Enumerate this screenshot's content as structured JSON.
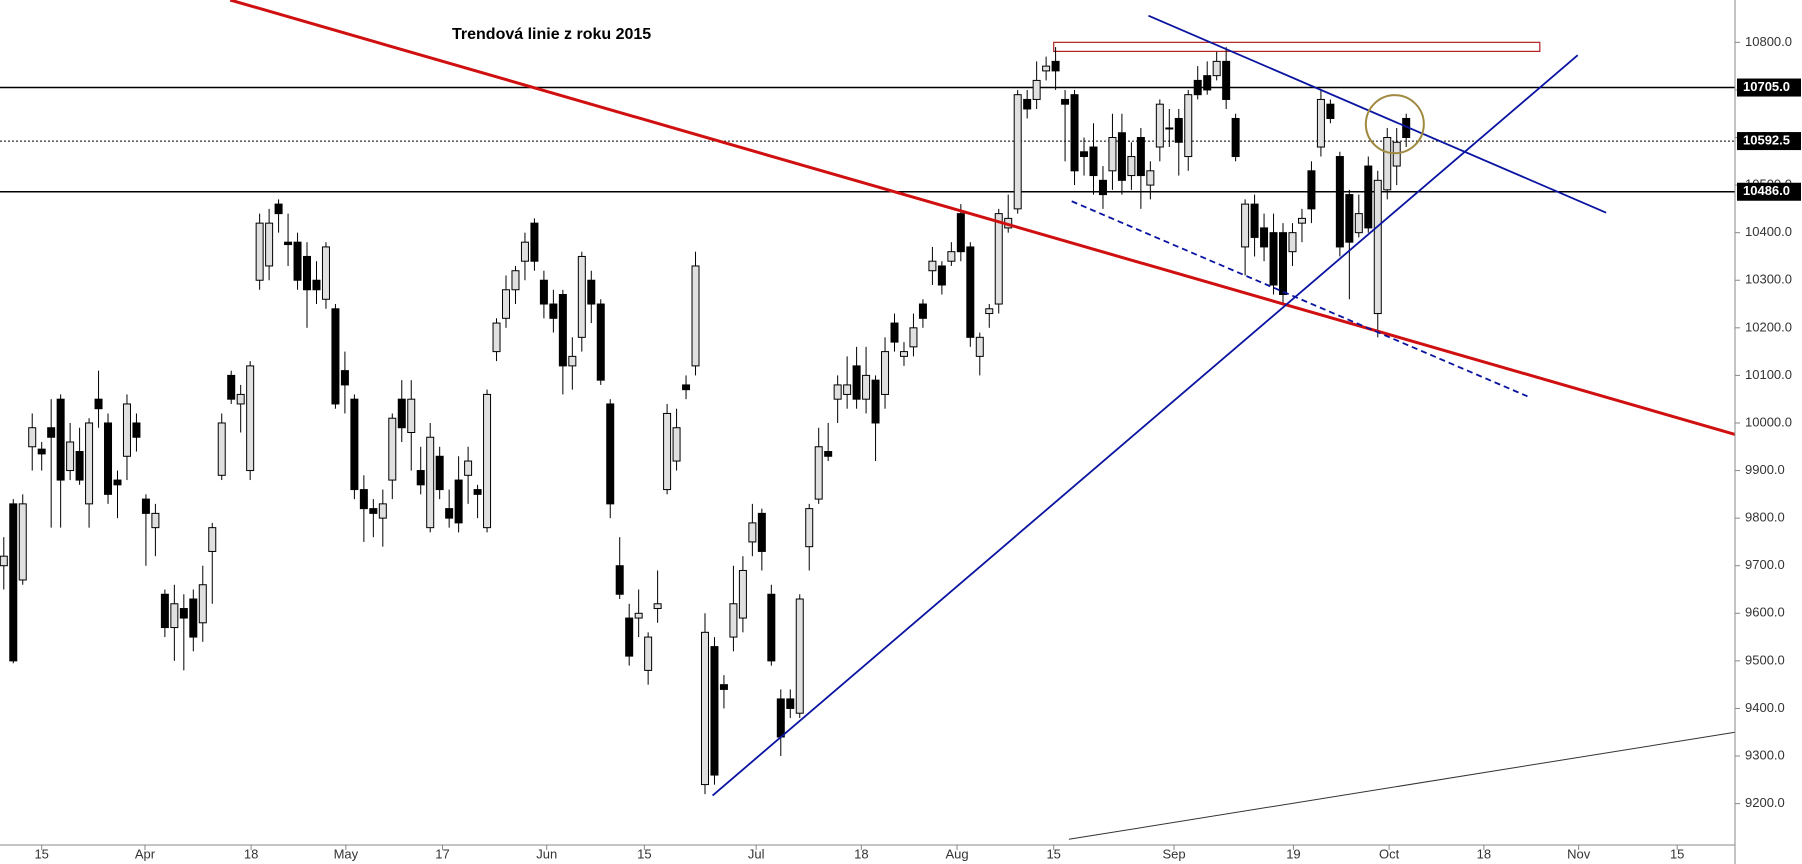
{
  "chart_data": {
    "type": "candlestick",
    "title": "Trendová linie z roku 2015",
    "xlim": [
      -0.4,
      182.7
    ],
    "ylim": [
      9113,
      10889
    ],
    "yticks": [
      {
        "value": 9200,
        "label": "9200.0"
      },
      {
        "value": 9300,
        "label": "9300.0"
      },
      {
        "value": 9400,
        "label": "9400.0"
      },
      {
        "value": 9500,
        "label": "9500.0"
      },
      {
        "value": 9600,
        "label": "9600.0"
      },
      {
        "value": 9700,
        "label": "9700.0"
      },
      {
        "value": 9800,
        "label": "9800.0"
      },
      {
        "value": 9900,
        "label": "9900.0"
      },
      {
        "value": 10000,
        "label": "10000.0"
      },
      {
        "value": 10100,
        "label": "10100.0"
      },
      {
        "value": 10200,
        "label": "10200.0"
      },
      {
        "value": 10300,
        "label": "10300.0"
      },
      {
        "value": 10400,
        "label": "10400.0"
      },
      {
        "value": 10500,
        "label": "10500.0"
      },
      {
        "value": 10600,
        "label": "10600.0"
      },
      {
        "value": 10700,
        "label": "10700.0"
      },
      {
        "value": 10800,
        "label": "10800.0"
      }
    ],
    "xticks": [
      {
        "value": 4.0,
        "label": "15"
      },
      {
        "value": 14.9,
        "label": "Apr"
      },
      {
        "value": 26.1,
        "label": "18"
      },
      {
        "value": 36.1,
        "label": "May"
      },
      {
        "value": 46.3,
        "label": "17"
      },
      {
        "value": 57.3,
        "label": "Jun"
      },
      {
        "value": 67.6,
        "label": "15"
      },
      {
        "value": 79.4,
        "label": "Jul"
      },
      {
        "value": 90.5,
        "label": "18"
      },
      {
        "value": 100.6,
        "label": "Aug"
      },
      {
        "value": 110.8,
        "label": "15"
      },
      {
        "value": 123.5,
        "label": "Sep"
      },
      {
        "value": 136.1,
        "label": "19"
      },
      {
        "value": 146.2,
        "label": "Oct"
      },
      {
        "value": 156.2,
        "label": "18"
      },
      {
        "value": 166.2,
        "label": "Nov"
      },
      {
        "value": 176.6,
        "label": "15"
      }
    ],
    "up_color": "#e0e0e0",
    "down_color": "#000000",
    "hlines": [
      {
        "value": 10705,
        "label": "10705.0",
        "style": "solid"
      },
      {
        "value": 10592.5,
        "label": "10592.5",
        "style": "dotted"
      },
      {
        "value": 10486,
        "label": "10486.0",
        "style": "solid"
      }
    ],
    "trendlines": [
      {
        "color": "#d01010",
        "width": 3,
        "dash": false,
        "x": [
          23.9,
          182.7
        ],
        "y": [
          10889,
          9976
        ]
      },
      {
        "color": "#0a14a0",
        "width": 1.8,
        "dash": false,
        "x": [
          74.8,
          166.1
        ],
        "y": [
          9217,
          10773
        ]
      },
      {
        "color": "#0a14a0",
        "width": 1.8,
        "dash": false,
        "x": [
          120.8,
          169.1
        ],
        "y": [
          10856,
          10442
        ]
      },
      {
        "color": "#0a14a0",
        "width": 1.8,
        "dash": true,
        "x": [
          112.7,
          160.8
        ],
        "y": [
          10466,
          10056
        ]
      },
      {
        "color": "#333333",
        "width": 1,
        "dash": false,
        "x": [
          112.4,
          182.7
        ],
        "y": [
          9125,
          9350
        ]
      }
    ],
    "zone": {
      "color": "#b02020",
      "x": [
        110.8,
        162.1
      ],
      "y": [
        10800,
        10781
      ]
    },
    "circle": {
      "color": "#a08a40",
      "x": 146.8,
      "y": 10628
    },
    "candles": [
      [
        9700,
        9760,
        9650,
        9720
      ],
      [
        9830,
        9840,
        9495,
        9500
      ],
      [
        9670,
        9850,
        9660,
        9830
      ],
      [
        9950,
        10020,
        9900,
        9990
      ],
      [
        9945,
        9960,
        9900,
        9935
      ],
      [
        9990,
        10050,
        9780,
        9970
      ],
      [
        10050,
        10060,
        9780,
        9880
      ],
      [
        9900,
        10000,
        9880,
        9960
      ],
      [
        9940,
        9990,
        9870,
        9880
      ],
      [
        9830,
        10010,
        9780,
        10000
      ],
      [
        10050,
        10110,
        9990,
        10030
      ],
      [
        10000,
        10020,
        9830,
        9850
      ],
      [
        9880,
        9900,
        9800,
        9870
      ],
      [
        9930,
        10060,
        9880,
        10040
      ],
      [
        10000,
        10020,
        9940,
        9970
      ],
      [
        9840,
        9850,
        9700,
        9810
      ],
      [
        9780,
        9830,
        9720,
        9810
      ],
      [
        9640,
        9650,
        9550,
        9570
      ],
      [
        9570,
        9660,
        9500,
        9620
      ],
      [
        9610,
        9640,
        9480,
        9590
      ],
      [
        9630,
        9650,
        9520,
        9550
      ],
      [
        9580,
        9700,
        9540,
        9660
      ],
      [
        9730,
        9790,
        9620,
        9780
      ],
      [
        9890,
        10020,
        9880,
        10000
      ],
      [
        10100,
        10110,
        10040,
        10050
      ],
      [
        10040,
        10080,
        9980,
        10060
      ],
      [
        9900,
        10130,
        9880,
        10120
      ],
      [
        10300,
        10440,
        10280,
        10420
      ],
      [
        10330,
        10450,
        10300,
        10420
      ],
      [
        10460,
        10470,
        10400,
        10440
      ],
      [
        10380,
        10440,
        10330,
        10375
      ],
      [
        10380,
        10400,
        10280,
        10300
      ],
      [
        10350,
        10380,
        10200,
        10280
      ],
      [
        10300,
        10340,
        10250,
        10280
      ],
      [
        10260,
        10380,
        10240,
        10370
      ],
      [
        10240,
        10250,
        10030,
        10040
      ],
      [
        10110,
        10150,
        10020,
        10080
      ],
      [
        10050,
        10060,
        9840,
        9860
      ],
      [
        9860,
        9890,
        9750,
        9820
      ],
      [
        9820,
        9840,
        9760,
        9810
      ],
      [
        9800,
        9860,
        9740,
        9830
      ],
      [
        9880,
        10020,
        9840,
        10010
      ],
      [
        10050,
        10090,
        9960,
        9990
      ],
      [
        9980,
        10090,
        9900,
        10050
      ],
      [
        9900,
        9950,
        9850,
        9870
      ],
      [
        9780,
        10000,
        9770,
        9970
      ],
      [
        9930,
        9950,
        9840,
        9860
      ],
      [
        9820,
        9860,
        9780,
        9800
      ],
      [
        9880,
        9930,
        9770,
        9790
      ],
      [
        9890,
        9950,
        9830,
        9920
      ],
      [
        9860,
        9870,
        9800,
        9850
      ],
      [
        9780,
        10070,
        9770,
        10060
      ],
      [
        10150,
        10220,
        10130,
        10210
      ],
      [
        10220,
        10310,
        10200,
        10280
      ],
      [
        10280,
        10330,
        10250,
        10320
      ],
      [
        10340,
        10400,
        10300,
        10380
      ],
      [
        10420,
        10430,
        10320,
        10340
      ],
      [
        10300,
        10320,
        10220,
        10250
      ],
      [
        10250,
        10280,
        10190,
        10220
      ],
      [
        10270,
        10280,
        10060,
        10120
      ],
      [
        10120,
        10180,
        10070,
        10140
      ],
      [
        10180,
        10360,
        10150,
        10350
      ],
      [
        10300,
        10320,
        10210,
        10250
      ],
      [
        10250,
        10260,
        10080,
        10090
      ],
      [
        10040,
        10050,
        9800,
        9830
      ],
      [
        9700,
        9760,
        9630,
        9640
      ],
      [
        9590,
        9620,
        9490,
        9510
      ],
      [
        9590,
        9650,
        9550,
        9600
      ],
      [
        9480,
        9560,
        9450,
        9550
      ],
      [
        9610,
        9690,
        9580,
        9620
      ],
      [
        9860,
        10040,
        9850,
        10020
      ],
      [
        9920,
        10030,
        9900,
        9990
      ],
      [
        10080,
        10100,
        10050,
        10070
      ],
      [
        10120,
        10360,
        10100,
        10330
      ],
      [
        9240,
        9600,
        9220,
        9560
      ],
      [
        9530,
        9550,
        9240,
        9260
      ],
      [
        9450,
        9470,
        9400,
        9440
      ],
      [
        9550,
        9700,
        9520,
        9620
      ],
      [
        9590,
        9720,
        9560,
        9690
      ],
      [
        9750,
        9830,
        9720,
        9790
      ],
      [
        9810,
        9820,
        9690,
        9730
      ],
      [
        9640,
        9660,
        9490,
        9500
      ],
      [
        9420,
        9440,
        9300,
        9340
      ],
      [
        9420,
        9440,
        9380,
        9400
      ],
      [
        9390,
        9640,
        9380,
        9630
      ],
      [
        9740,
        9830,
        9690,
        9820
      ],
      [
        9840,
        9990,
        9830,
        9950
      ],
      [
        9940,
        10000,
        9920,
        9930
      ],
      [
        10050,
        10100,
        10000,
        10080
      ],
      [
        10060,
        10140,
        10030,
        10080
      ],
      [
        10120,
        10160,
        10030,
        10050
      ],
      [
        10050,
        10160,
        10020,
        10100
      ],
      [
        10090,
        10100,
        9920,
        10000
      ],
      [
        10060,
        10180,
        10030,
        10150
      ],
      [
        10210,
        10230,
        10150,
        10170
      ],
      [
        10140,
        10170,
        10120,
        10150
      ],
      [
        10160,
        10230,
        10140,
        10200
      ],
      [
        10250,
        10260,
        10200,
        10220
      ],
      [
        10320,
        10370,
        10290,
        10340
      ],
      [
        10330,
        10340,
        10270,
        10290
      ],
      [
        10340,
        10380,
        10330,
        10360
      ],
      [
        10440,
        10460,
        10340,
        10360
      ],
      [
        10370,
        10380,
        10160,
        10180
      ],
      [
        10140,
        10190,
        10100,
        10180
      ],
      [
        10230,
        10250,
        10200,
        10240
      ],
      [
        10250,
        10450,
        10230,
        10440
      ],
      [
        10410,
        10480,
        10400,
        10430
      ],
      [
        10450,
        10700,
        10440,
        10690
      ],
      [
        10680,
        10700,
        10640,
        10660
      ],
      [
        10680,
        10760,
        10660,
        10720
      ],
      [
        10740,
        10770,
        10720,
        10750
      ],
      [
        10760,
        10790,
        10700,
        10740
      ],
      [
        10680,
        10700,
        10550,
        10670
      ],
      [
        10690,
        10700,
        10500,
        10530
      ],
      [
        10570,
        10600,
        10520,
        10560
      ],
      [
        10580,
        10630,
        10480,
        10520
      ],
      [
        10510,
        10540,
        10450,
        10480
      ],
      [
        10530,
        10650,
        10490,
        10600
      ],
      [
        10610,
        10650,
        10480,
        10510
      ],
      [
        10520,
        10590,
        10490,
        10560
      ],
      [
        10600,
        10620,
        10450,
        10520
      ],
      [
        10500,
        10550,
        10470,
        10530
      ],
      [
        10580,
        10680,
        10550,
        10670
      ],
      [
        10620,
        10660,
        10580,
        10620
      ],
      [
        10640,
        10660,
        10520,
        10590
      ],
      [
        10560,
        10700,
        10530,
        10690
      ],
      [
        10720,
        10750,
        10680,
        10690
      ],
      [
        10730,
        10760,
        10690,
        10700
      ],
      [
        10730,
        10780,
        10720,
        10760
      ],
      [
        10760,
        10790,
        10660,
        10680
      ],
      [
        10640,
        10650,
        10550,
        10560
      ],
      [
        10370,
        10470,
        10310,
        10460
      ],
      [
        10460,
        10480,
        10350,
        10390
      ],
      [
        10410,
        10440,
        10340,
        10370
      ],
      [
        10400,
        10440,
        10270,
        10290
      ],
      [
        10400,
        10420,
        10250,
        10270
      ],
      [
        10360,
        10420,
        10330,
        10400
      ],
      [
        10420,
        10450,
        10380,
        10430
      ],
      [
        10530,
        10550,
        10420,
        10450
      ],
      [
        10580,
        10700,
        10560,
        10680
      ],
      [
        10670,
        10680,
        10630,
        10640
      ],
      [
        10560,
        10570,
        10350,
        10370
      ],
      [
        10480,
        10490,
        10260,
        10380
      ],
      [
        10400,
        10480,
        10390,
        10440
      ],
      [
        10540,
        10560,
        10400,
        10410
      ],
      [
        10230,
        10530,
        10180,
        10510
      ],
      [
        10490,
        10620,
        10470,
        10600
      ],
      [
        10540,
        10620,
        10500,
        10590
      ],
      [
        10640,
        10650,
        10580,
        10600
      ]
    ]
  }
}
